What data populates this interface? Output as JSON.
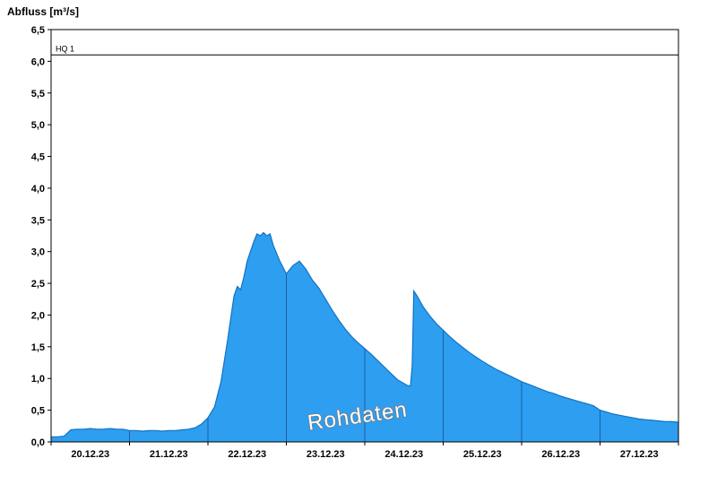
{
  "chart_data": {
    "type": "area",
    "title": "Abfluss [m³/s]",
    "watermark": "Rohdaten",
    "threshold": {
      "label": "HQ 1",
      "value": 6.1
    },
    "x_range_days": [
      0,
      8
    ],
    "ylim": [
      0,
      6.5
    ],
    "x_tick_labels": [
      "20.12.23",
      "21.12.23",
      "22.12.23",
      "23.12.23",
      "24.12.23",
      "25.12.23",
      "26.12.23",
      "27.12.23"
    ],
    "y_tick_values": [
      0,
      0.5,
      1,
      1.5,
      2,
      2.5,
      3,
      3.5,
      4,
      4.5,
      5,
      5.5,
      6,
      6.5
    ],
    "y_tick_labels": [
      "0,0",
      "0,5",
      "1,0",
      "1,5",
      "2,0",
      "2,5",
      "3,0",
      "3,5",
      "4,0",
      "4,5",
      "5,0",
      "5,5",
      "6,0",
      "6,5"
    ],
    "colors": {
      "fill": "#2E9EF0",
      "line": "#1273C4",
      "grid": "#1E5F9E",
      "axis": "#000000",
      "threshold": "#000000",
      "watermark_fill": "#FFFFFF",
      "watermark_outline": "#777777"
    },
    "series": [
      {
        "name": "Rohdaten",
        "points": [
          [
            0,
            0.08
          ],
          [
            0.083,
            0.08
          ],
          [
            0.167,
            0.09
          ],
          [
            0.25,
            0.19
          ],
          [
            0.333,
            0.2
          ],
          [
            0.417,
            0.2
          ],
          [
            0.5,
            0.21
          ],
          [
            0.583,
            0.2
          ],
          [
            0.667,
            0.2
          ],
          [
            0.75,
            0.21
          ],
          [
            0.833,
            0.2
          ],
          [
            0.917,
            0.2
          ],
          [
            1,
            0.18
          ],
          [
            1.083,
            0.18
          ],
          [
            1.167,
            0.17
          ],
          [
            1.25,
            0.18
          ],
          [
            1.333,
            0.18
          ],
          [
            1.417,
            0.17
          ],
          [
            1.5,
            0.18
          ],
          [
            1.583,
            0.18
          ],
          [
            1.667,
            0.19
          ],
          [
            1.75,
            0.2
          ],
          [
            1.833,
            0.22
          ],
          [
            1.917,
            0.28
          ],
          [
            2,
            0.38
          ],
          [
            2.083,
            0.55
          ],
          [
            2.167,
            0.95
          ],
          [
            2.25,
            1.6
          ],
          [
            2.333,
            2.3
          ],
          [
            2.375,
            2.45
          ],
          [
            2.417,
            2.4
          ],
          [
            2.458,
            2.6
          ],
          [
            2.5,
            2.85
          ],
          [
            2.583,
            3.15
          ],
          [
            2.625,
            3.28
          ],
          [
            2.667,
            3.25
          ],
          [
            2.708,
            3.3
          ],
          [
            2.75,
            3.25
          ],
          [
            2.792,
            3.28
          ],
          [
            2.833,
            3.1
          ],
          [
            2.917,
            2.85
          ],
          [
            3,
            2.65
          ],
          [
            3.083,
            2.78
          ],
          [
            3.167,
            2.85
          ],
          [
            3.25,
            2.72
          ],
          [
            3.333,
            2.55
          ],
          [
            3.417,
            2.42
          ],
          [
            3.5,
            2.25
          ],
          [
            3.583,
            2.08
          ],
          [
            3.667,
            1.92
          ],
          [
            3.75,
            1.78
          ],
          [
            3.833,
            1.66
          ],
          [
            3.917,
            1.56
          ],
          [
            4,
            1.47
          ],
          [
            4.083,
            1.38
          ],
          [
            4.167,
            1.28
          ],
          [
            4.25,
            1.18
          ],
          [
            4.333,
            1.08
          ],
          [
            4.417,
            0.98
          ],
          [
            4.5,
            0.92
          ],
          [
            4.542,
            0.89
          ],
          [
            4.583,
            0.88
          ],
          [
            4.604,
            1.2
          ],
          [
            4.625,
            2.38
          ],
          [
            4.667,
            2.3
          ],
          [
            4.75,
            2.12
          ],
          [
            4.833,
            1.98
          ],
          [
            4.917,
            1.86
          ],
          [
            5,
            1.76
          ],
          [
            5.083,
            1.66
          ],
          [
            5.167,
            1.57
          ],
          [
            5.25,
            1.49
          ],
          [
            5.333,
            1.41
          ],
          [
            5.417,
            1.34
          ],
          [
            5.5,
            1.27
          ],
          [
            5.583,
            1.21
          ],
          [
            5.667,
            1.15
          ],
          [
            5.75,
            1.1
          ],
          [
            5.833,
            1.05
          ],
          [
            5.917,
            1.0
          ],
          [
            6,
            0.95
          ],
          [
            6.083,
            0.91
          ],
          [
            6.167,
            0.87
          ],
          [
            6.25,
            0.83
          ],
          [
            6.333,
            0.79
          ],
          [
            6.417,
            0.76
          ],
          [
            6.5,
            0.72
          ],
          [
            6.583,
            0.69
          ],
          [
            6.667,
            0.66
          ],
          [
            6.75,
            0.63
          ],
          [
            6.833,
            0.6
          ],
          [
            6.917,
            0.57
          ],
          [
            7,
            0.5
          ],
          [
            7.083,
            0.47
          ],
          [
            7.167,
            0.44
          ],
          [
            7.25,
            0.42
          ],
          [
            7.333,
            0.4
          ],
          [
            7.417,
            0.38
          ],
          [
            7.5,
            0.36
          ],
          [
            7.583,
            0.35
          ],
          [
            7.667,
            0.34
          ],
          [
            7.75,
            0.33
          ],
          [
            7.833,
            0.32
          ],
          [
            7.917,
            0.32
          ],
          [
            8,
            0.31
          ]
        ]
      }
    ]
  }
}
